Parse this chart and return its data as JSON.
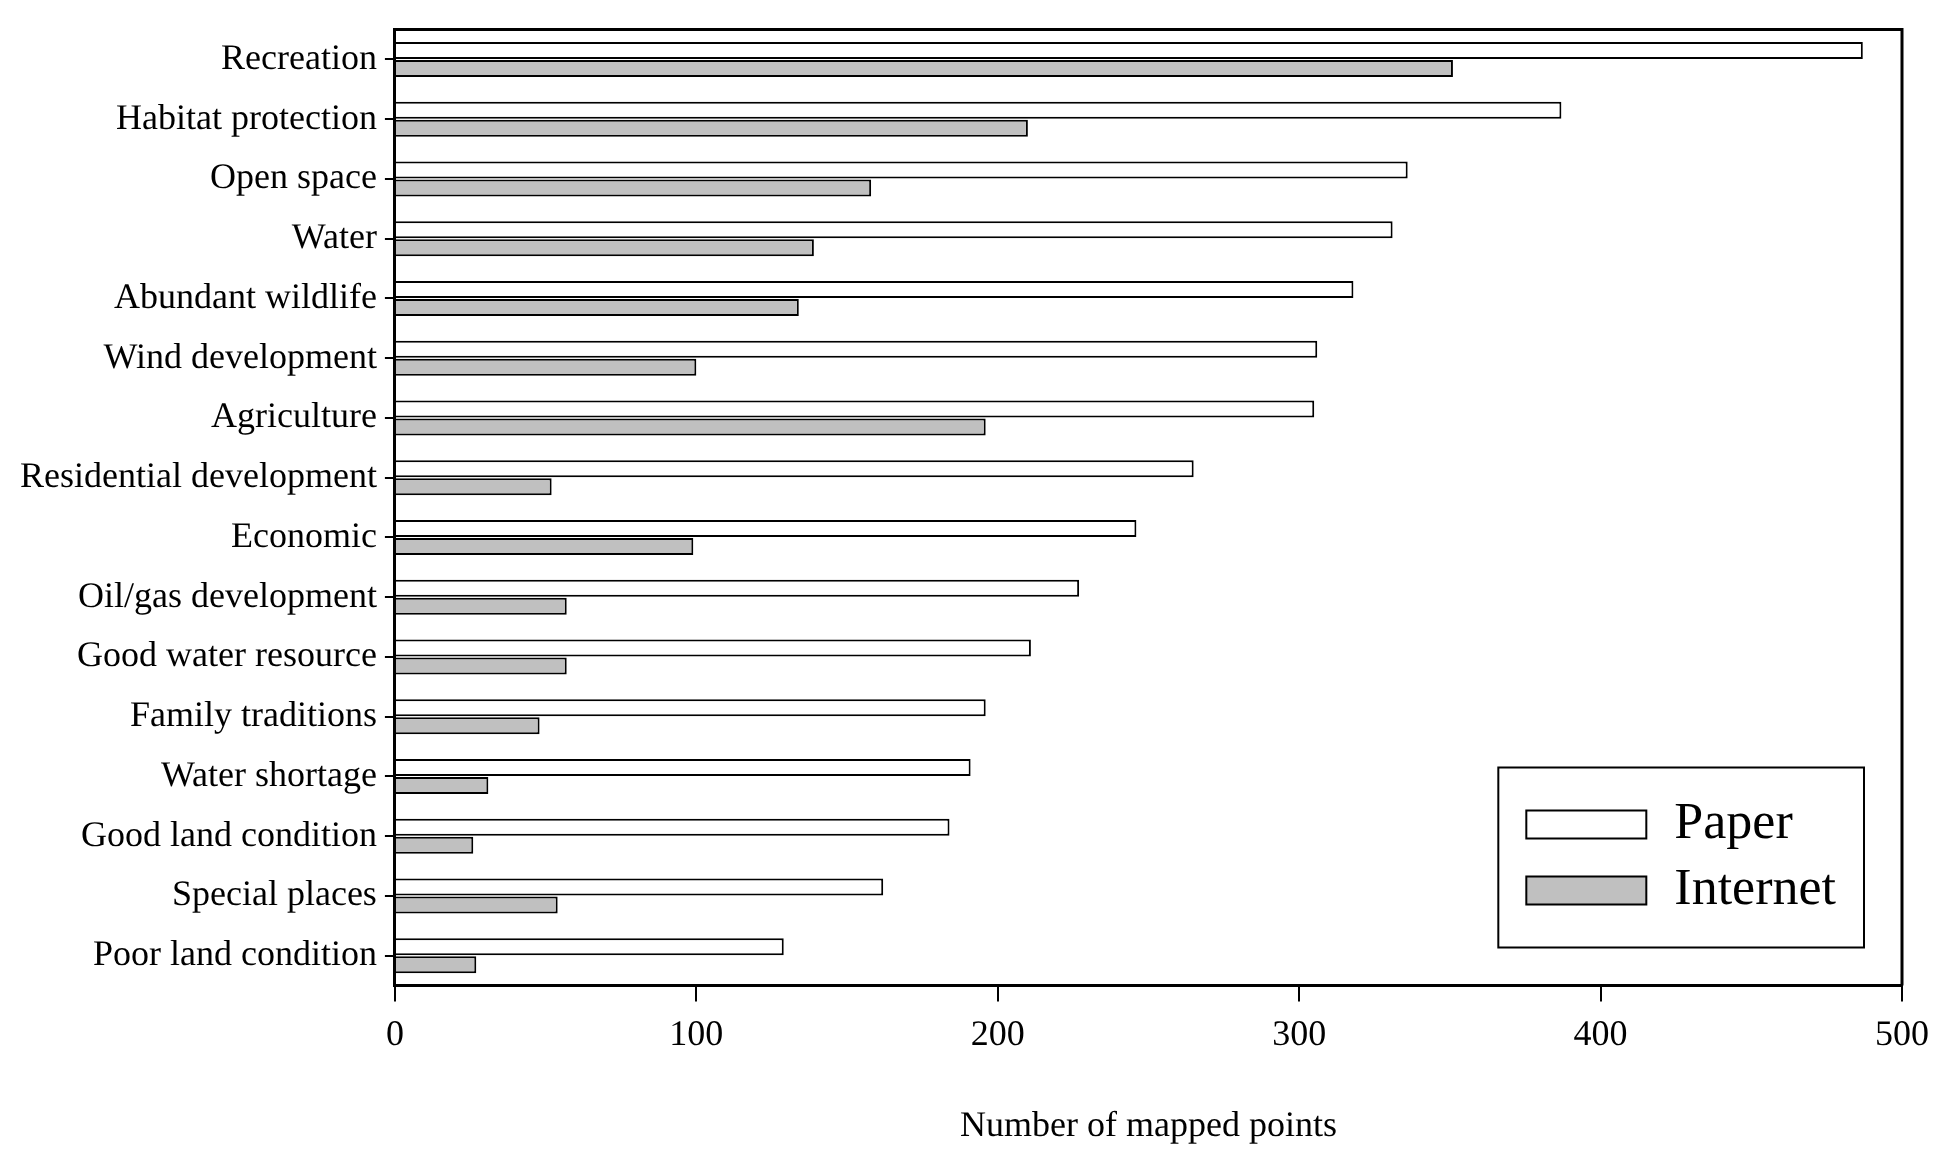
{
  "chart_data": {
    "type": "bar",
    "orientation": "horizontal",
    "xlabel": "Number of mapped points",
    "categories": [
      "Recreation",
      "Habitat protection",
      "Open space",
      "Water",
      "Abundant wildlife",
      "Wind development",
      "Agriculture",
      "Residential development",
      "Economic",
      "Oil/gas development",
      "Good water resource",
      "Family traditions",
      "Water shortage",
      "Good land condition",
      "Special places",
      "Poor land condition"
    ],
    "series": [
      {
        "name": "Paper",
        "color": "#ffffff",
        "values": [
          487,
          387,
          336,
          331,
          318,
          306,
          305,
          265,
          246,
          227,
          211,
          196,
          191,
          184,
          162,
          129
        ]
      },
      {
        "name": "Internet",
        "color": "#c0c0c0",
        "values": [
          351,
          210,
          158,
          139,
          134,
          100,
          196,
          52,
          99,
          57,
          57,
          48,
          31,
          26,
          54,
          27
        ]
      }
    ],
    "xlim": [
      0,
      500
    ],
    "xticks": [
      0,
      100,
      200,
      300,
      400,
      500
    ],
    "grid": false,
    "legend": "bottom right"
  }
}
